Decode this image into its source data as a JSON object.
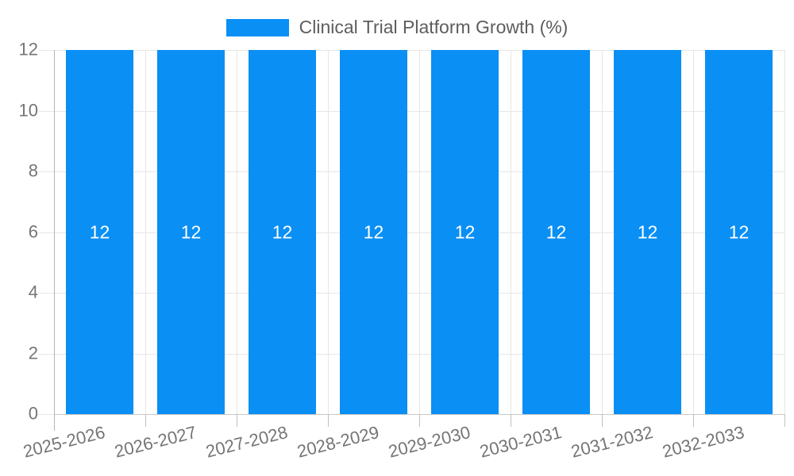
{
  "chart_data": {
    "type": "bar",
    "title": "Clinical Trial Platform Growth (%)",
    "categories": [
      "2025-2026",
      "2026-2027",
      "2027-2028",
      "2028-2029",
      "2029-2030",
      "2030-2031",
      "2031-2032",
      "2032-2033"
    ],
    "series": [
      {
        "name": "Clinical Trial Platform Growth (%)",
        "values": [
          12,
          12,
          12,
          12,
          12,
          12,
          12,
          12
        ]
      }
    ],
    "bar_value_labels": [
      "12",
      "12",
      "12",
      "12",
      "12",
      "12",
      "12",
      "12"
    ],
    "xlabel": "",
    "ylabel": "",
    "ylim": [
      0,
      12
    ],
    "yticks": [
      0,
      2,
      4,
      6,
      8,
      10,
      12
    ],
    "grid": true,
    "legend_position": "top-center",
    "x_label_rotation_deg": -14,
    "colors": {
      "bar": "#0a8ff5",
      "bar_value_text": "#ffffff",
      "axis_text": "#757575",
      "legend_text": "#5d5d5d",
      "gridline": "#e6e6e6",
      "axis_line": "#b5b5b5",
      "background": "#ffffff"
    }
  },
  "legend": {
    "label": "Clinical Trial Platform Growth (%)"
  }
}
